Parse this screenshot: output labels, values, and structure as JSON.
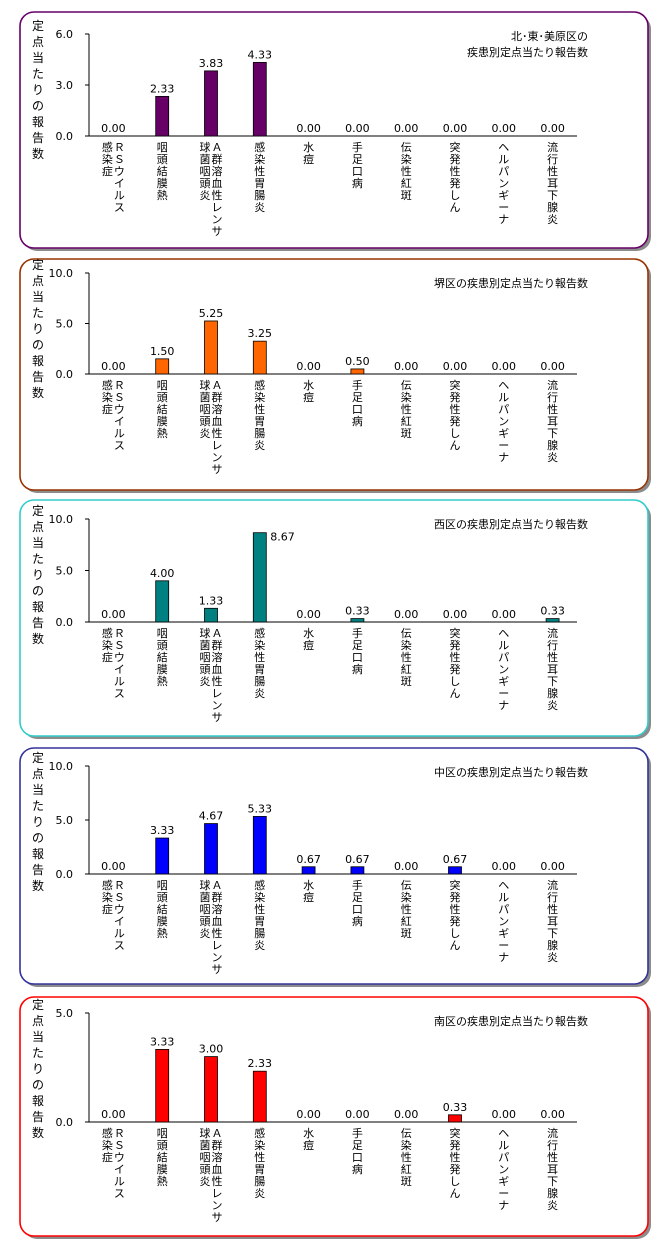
{
  "chart_data": [
    {
      "type": "bar",
      "title": "北･東･美原区の\n疾患別定点当たり報告数",
      "ylabel": "定点当たりの報告数",
      "categories": [
        "ＲＳウイルス\n感染症",
        "咽頭結膜熱",
        "Ａ群溶血性レンサ\n球菌咽頭炎",
        "感染性胃腸炎",
        "水痘",
        "手足口病",
        "伝染性紅斑",
        "突発性発しん",
        "ヘルパンギーナ",
        "流行性耳下腺炎"
      ],
      "values": [
        0.0,
        2.33,
        3.83,
        4.33,
        0.0,
        0.0,
        0.0,
        0.0,
        0.0,
        0.0
      ],
      "value_labels": [
        "0.00",
        "2.33",
        "3.83",
        "4.33",
        "0.00",
        "0.00",
        "0.00",
        "0.00",
        "0.00",
        "0.00"
      ],
      "ylim": [
        0,
        6
      ],
      "yticks": [
        0,
        3,
        6
      ],
      "ytick_labels": [
        "0.0",
        "3.0",
        "6.0"
      ],
      "bar_color": "#660066",
      "frame_color": "#660066"
    },
    {
      "type": "bar",
      "title": "堺区の疾患別定点当たり報告数",
      "ylabel": "定点当たりの報告数",
      "categories": [
        "ＲＳウイルス\n感染症",
        "咽頭結膜熱",
        "Ａ群溶血性レンサ\n球菌咽頭炎",
        "感染性胃腸炎",
        "水痘",
        "手足口病",
        "伝染性紅斑",
        "突発性発しん",
        "ヘルパンギーナ",
        "流行性耳下腺炎"
      ],
      "values": [
        0.0,
        1.5,
        5.25,
        3.25,
        0.0,
        0.5,
        0.0,
        0.0,
        0.0,
        0.0
      ],
      "value_labels": [
        "0.00",
        "1.50",
        "5.25",
        "3.25",
        "0.00",
        "0.50",
        "0.00",
        "0.00",
        "0.00",
        "0.00"
      ],
      "ylim": [
        0,
        10
      ],
      "yticks": [
        0,
        5,
        10
      ],
      "ytick_labels": [
        "0.0",
        "5.0",
        "10.0"
      ],
      "bar_color": "#ff6600",
      "frame_color": "#993300"
    },
    {
      "type": "bar",
      "title": "西区の疾患別定点当たり報告数",
      "ylabel": "定点当たりの報告数",
      "categories": [
        "ＲＳウイルス\n感染症",
        "咽頭結膜熱",
        "Ａ群溶血性レンサ\n球菌咽頭炎",
        "感染性胃腸炎",
        "水痘",
        "手足口病",
        "伝染性紅斑",
        "突発性発しん",
        "ヘルパンギーナ",
        "流行性耳下腺炎"
      ],
      "values": [
        0.0,
        4.0,
        1.33,
        8.67,
        0.0,
        0.33,
        0.0,
        0.0,
        0.0,
        0.33
      ],
      "value_labels": [
        "0.00",
        "4.00",
        "1.33",
        "8.67",
        "0.00",
        "0.33",
        "0.00",
        "0.00",
        "0.00",
        "0.33"
      ],
      "ylim": [
        0,
        10
      ],
      "yticks": [
        0,
        5,
        10
      ],
      "ytick_labels": [
        "0.0",
        "5.0",
        "10.0"
      ],
      "bar_color": "#008080",
      "frame_color": "#33cccc"
    },
    {
      "type": "bar",
      "title": "中区の疾患別定点当たり報告数",
      "ylabel": "定点当たりの報告数",
      "categories": [
        "ＲＳウイルス\n感染症",
        "咽頭結膜熱",
        "Ａ群溶血性レンサ\n球菌咽頭炎",
        "感染性胃腸炎",
        "水痘",
        "手足口病",
        "伝染性紅斑",
        "突発性発しん",
        "ヘルパンギーナ",
        "流行性耳下腺炎"
      ],
      "values": [
        0.0,
        3.33,
        4.67,
        5.33,
        0.67,
        0.67,
        0.0,
        0.67,
        0.0,
        0.0
      ],
      "value_labels": [
        "0.00",
        "3.33",
        "4.67",
        "5.33",
        "0.67",
        "0.67",
        "0.00",
        "0.67",
        "0.00",
        "0.00"
      ],
      "ylim": [
        0,
        10
      ],
      "yticks": [
        0,
        5,
        10
      ],
      "ytick_labels": [
        "0.0",
        "5.0",
        "10.0"
      ],
      "bar_color": "#0000ff",
      "frame_color": "#333399"
    },
    {
      "type": "bar",
      "title": "南区の疾患別定点当たり報告数",
      "ylabel": "定点当たりの報告数",
      "categories": [
        "ＲＳウイルス\n感染症",
        "咽頭結膜熱",
        "Ａ群溶血性レンサ\n球菌咽頭炎",
        "感染性胃腸炎",
        "水痘",
        "手足口病",
        "伝染性紅斑",
        "突発性発しん",
        "ヘルパンギーナ",
        "流行性耳下腺炎"
      ],
      "values": [
        0.0,
        3.33,
        3.0,
        2.33,
        0.0,
        0.0,
        0.0,
        0.33,
        0.0,
        0.0
      ],
      "value_labels": [
        "0.00",
        "3.33",
        "3.00",
        "2.33",
        "0.00",
        "0.00",
        "0.00",
        "0.33",
        "0.00",
        "0.00"
      ],
      "ylim": [
        0,
        5
      ],
      "yticks": [
        0,
        5
      ],
      "ytick_labels": [
        "0.0",
        "5.0"
      ],
      "bar_color": "#ff0000",
      "frame_color": "#ff0000"
    }
  ]
}
